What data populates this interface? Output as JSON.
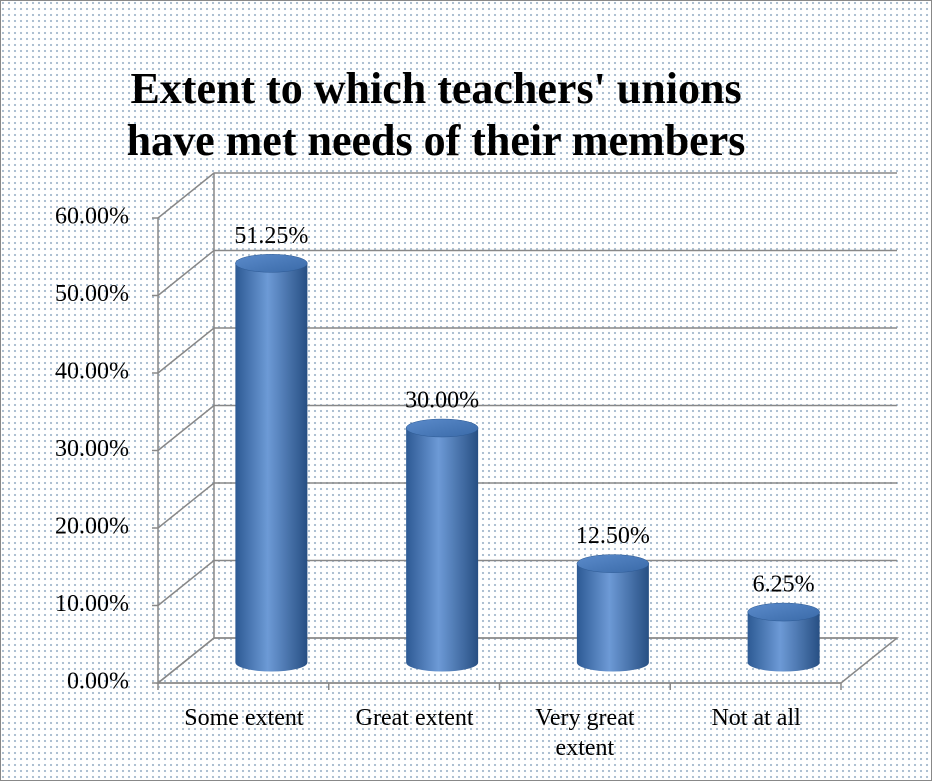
{
  "chart_data": {
    "type": "bar3d",
    "title": "Extent to which teachers' unions have met needs of their members",
    "categories": [
      "Some extent",
      "Great extent",
      "Very great extent",
      "Not at all"
    ],
    "values": [
      51.25,
      30,
      12.5,
      6.25
    ],
    "value_labels": [
      "51.25%",
      "30.00%",
      "12.50%",
      "6.25%"
    ],
    "color": "#4a7ebb",
    "ylim": [
      0,
      60
    ],
    "yticks": [
      {
        "value": 0,
        "label": "0.00%"
      },
      {
        "value": 10,
        "label": "10.00%"
      },
      {
        "value": 20,
        "label": "20.00%"
      },
      {
        "value": 30,
        "label": "30.00%"
      },
      {
        "value": 40,
        "label": "40.00%"
      },
      {
        "value": 50,
        "label": "50.00%"
      },
      {
        "value": 60,
        "label": "60.00%"
      }
    ],
    "grid": true
  }
}
